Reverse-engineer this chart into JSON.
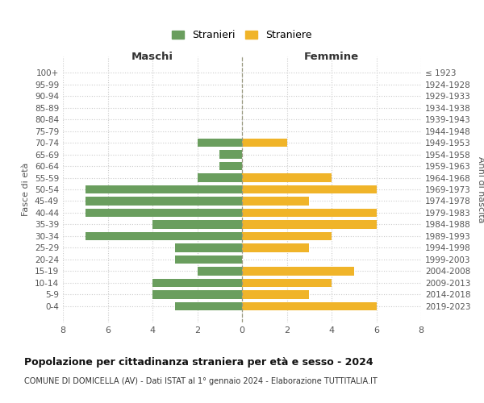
{
  "age_groups": [
    "100+",
    "95-99",
    "90-94",
    "85-89",
    "80-84",
    "75-79",
    "70-74",
    "65-69",
    "60-64",
    "55-59",
    "50-54",
    "45-49",
    "40-44",
    "35-39",
    "30-34",
    "25-29",
    "20-24",
    "15-19",
    "10-14",
    "5-9",
    "0-4"
  ],
  "birth_years": [
    "≤ 1923",
    "1924-1928",
    "1929-1933",
    "1934-1938",
    "1939-1943",
    "1944-1948",
    "1949-1953",
    "1954-1958",
    "1959-1963",
    "1964-1968",
    "1969-1973",
    "1974-1978",
    "1979-1983",
    "1984-1988",
    "1989-1993",
    "1994-1998",
    "1999-2003",
    "2004-2008",
    "2009-2013",
    "2014-2018",
    "2019-2023"
  ],
  "maschi": [
    0,
    0,
    0,
    0,
    0,
    0,
    2,
    1,
    1,
    2,
    7,
    7,
    7,
    4,
    7,
    3,
    3,
    2,
    4,
    4,
    3
  ],
  "femmine": [
    0,
    0,
    0,
    0,
    0,
    0,
    2,
    0,
    0,
    4,
    6,
    3,
    6,
    6,
    4,
    3,
    0,
    5,
    4,
    3,
    6
  ],
  "male_color": "#6a9e5e",
  "female_color": "#f0b429",
  "title": "Popolazione per cittadinanza straniera per età e sesso - 2024",
  "subtitle": "COMUNE DI DOMICELLA (AV) - Dati ISTAT al 1° gennaio 2024 - Elaborazione TUTTITALIA.IT",
  "xlabel_left": "Maschi",
  "xlabel_right": "Femmine",
  "ylabel_left": "Fasce di età",
  "ylabel_right": "Anni di nascita",
  "legend_male": "Stranieri",
  "legend_female": "Straniere",
  "xlim": 8,
  "background_color": "#ffffff",
  "grid_color": "#cccccc"
}
